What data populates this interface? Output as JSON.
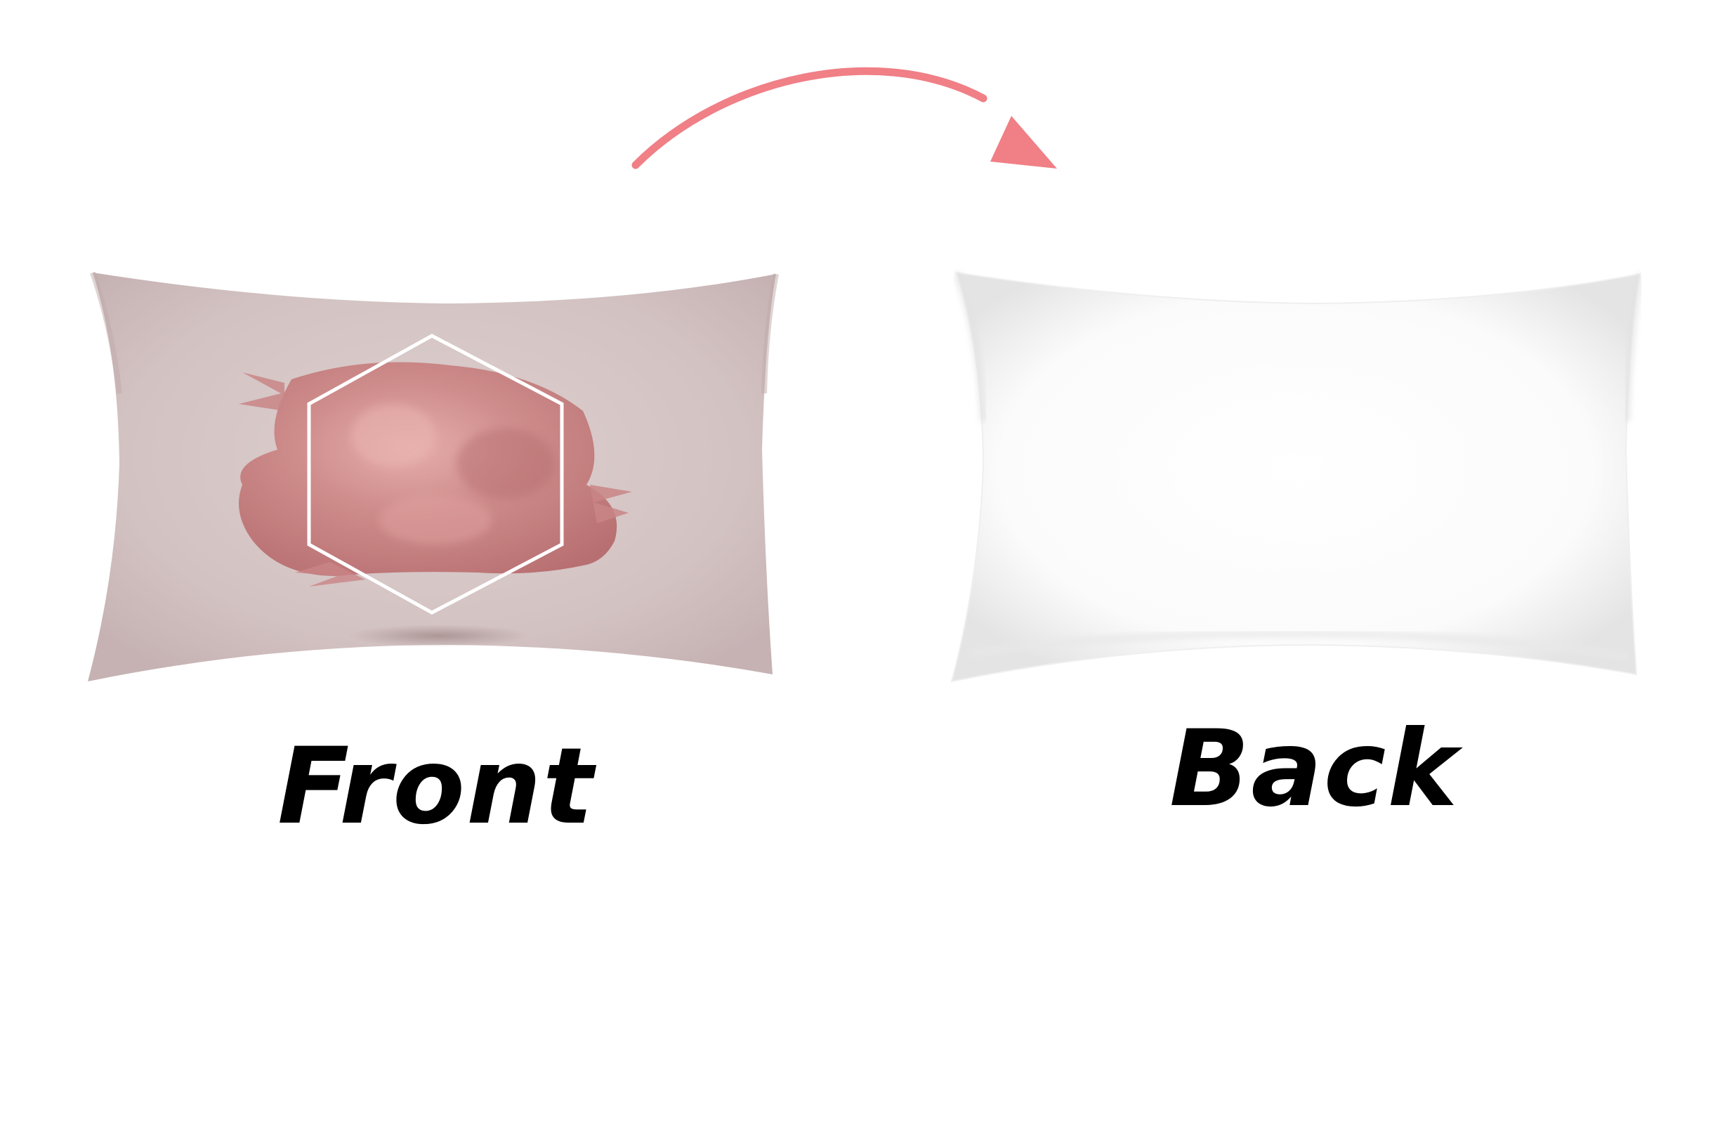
{
  "labels": {
    "front": "Front",
    "back": "Back"
  },
  "colors": {
    "background": "#ffffff",
    "front_fabric": "#d6c6c6",
    "front_fabric_edge": "#c9b5b6",
    "brush_stroke": "#c27f80",
    "brush_highlight": "#e3a8a6",
    "hexagon_outline": "#ffffff",
    "back_fabric": "#ffffff",
    "back_shade": "#e6e6e6",
    "arrow": "#f07f86",
    "label_text": "#000000"
  },
  "icons": {
    "arrow": "curved-arrow-right-icon",
    "hexagon": "hexagon-outline-icon"
  }
}
